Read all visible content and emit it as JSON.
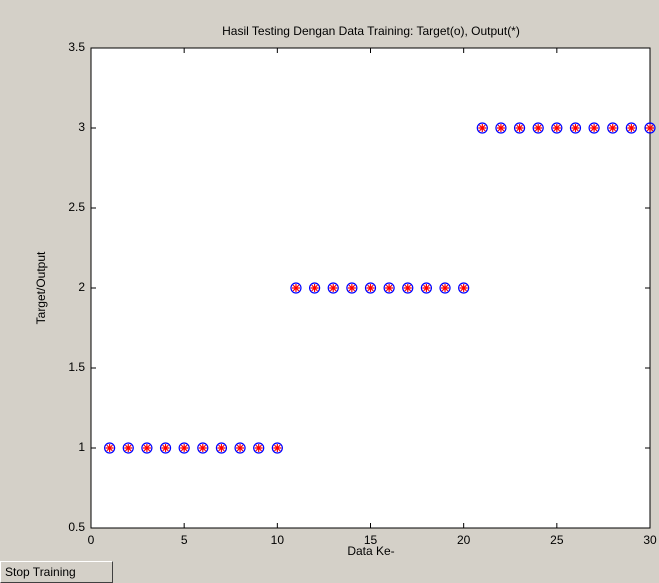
{
  "chart_data": {
    "type": "scatter",
    "title": "Hasil Testing Dengan Data Training: Target(o), Output(*)",
    "x_label": "Data Ke-",
    "y_label": "Target/Output",
    "x": [
      1,
      2,
      3,
      4,
      5,
      6,
      7,
      8,
      9,
      10,
      11,
      12,
      13,
      14,
      15,
      16,
      17,
      18,
      19,
      20,
      21,
      22,
      23,
      24,
      25,
      26,
      27,
      28,
      29,
      30
    ],
    "series": [
      {
        "marker": "circle",
        "color": "#0000ff",
        "values": [
          1,
          1,
          1,
          1,
          1,
          1,
          1,
          1,
          1,
          1,
          2,
          2,
          2,
          2,
          2,
          2,
          2,
          2,
          2,
          2,
          3,
          3,
          3,
          3,
          3,
          3,
          3,
          3,
          3,
          3
        ]
      },
      {
        "marker": "star",
        "color": "#ff0000",
        "values": [
          1,
          1,
          1,
          1,
          1,
          1,
          1,
          1,
          1,
          1,
          2,
          2,
          2,
          2,
          2,
          2,
          2,
          2,
          2,
          2,
          3,
          3,
          3,
          3,
          3,
          3,
          3,
          3,
          3,
          3
        ]
      }
    ],
    "xlim": [
      0,
      30
    ],
    "xticks": [
      0,
      5,
      10,
      15,
      20,
      25,
      30
    ],
    "ylim": [
      0.5,
      3.5
    ],
    "yticks": [
      0.5,
      1,
      1.5,
      2,
      2.5,
      3,
      3.5
    ],
    "grid": false
  },
  "stop_button": "Stop Training"
}
